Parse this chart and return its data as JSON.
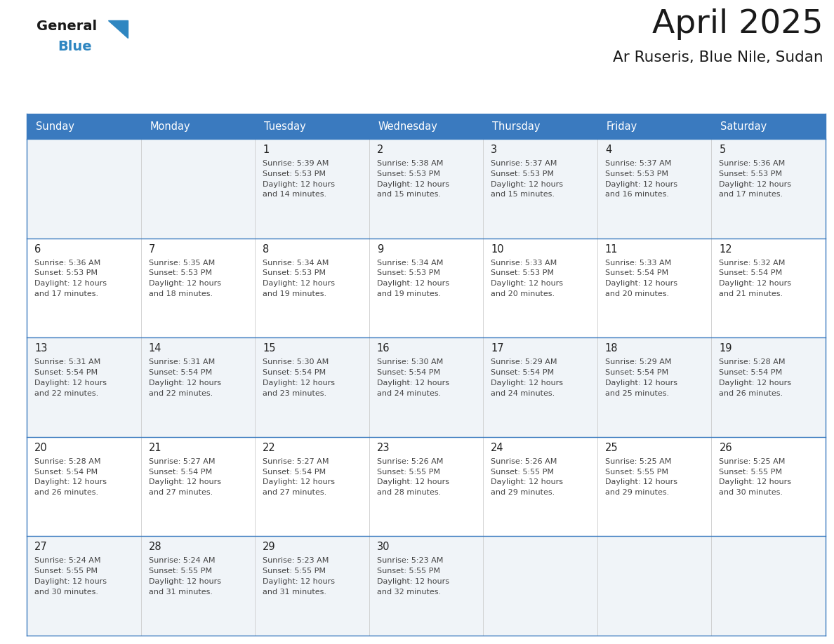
{
  "title": "April 2025",
  "subtitle": "Ar Ruseris, Blue Nile, Sudan",
  "header_bg": "#3a7abf",
  "header_text_color": "#ffffff",
  "cell_bg_odd": "#f0f4f8",
  "cell_bg_even": "#ffffff",
  "row_line_color": "#3a7abf",
  "text_color": "#444444",
  "days_of_week": [
    "Sunday",
    "Monday",
    "Tuesday",
    "Wednesday",
    "Thursday",
    "Friday",
    "Saturday"
  ],
  "calendar": [
    [
      {
        "day": "",
        "info": ""
      },
      {
        "day": "",
        "info": ""
      },
      {
        "day": "1",
        "info": "Sunrise: 5:39 AM\nSunset: 5:53 PM\nDaylight: 12 hours\nand 14 minutes."
      },
      {
        "day": "2",
        "info": "Sunrise: 5:38 AM\nSunset: 5:53 PM\nDaylight: 12 hours\nand 15 minutes."
      },
      {
        "day": "3",
        "info": "Sunrise: 5:37 AM\nSunset: 5:53 PM\nDaylight: 12 hours\nand 15 minutes."
      },
      {
        "day": "4",
        "info": "Sunrise: 5:37 AM\nSunset: 5:53 PM\nDaylight: 12 hours\nand 16 minutes."
      },
      {
        "day": "5",
        "info": "Sunrise: 5:36 AM\nSunset: 5:53 PM\nDaylight: 12 hours\nand 17 minutes."
      }
    ],
    [
      {
        "day": "6",
        "info": "Sunrise: 5:36 AM\nSunset: 5:53 PM\nDaylight: 12 hours\nand 17 minutes."
      },
      {
        "day": "7",
        "info": "Sunrise: 5:35 AM\nSunset: 5:53 PM\nDaylight: 12 hours\nand 18 minutes."
      },
      {
        "day": "8",
        "info": "Sunrise: 5:34 AM\nSunset: 5:53 PM\nDaylight: 12 hours\nand 19 minutes."
      },
      {
        "day": "9",
        "info": "Sunrise: 5:34 AM\nSunset: 5:53 PM\nDaylight: 12 hours\nand 19 minutes."
      },
      {
        "day": "10",
        "info": "Sunrise: 5:33 AM\nSunset: 5:53 PM\nDaylight: 12 hours\nand 20 minutes."
      },
      {
        "day": "11",
        "info": "Sunrise: 5:33 AM\nSunset: 5:54 PM\nDaylight: 12 hours\nand 20 minutes."
      },
      {
        "day": "12",
        "info": "Sunrise: 5:32 AM\nSunset: 5:54 PM\nDaylight: 12 hours\nand 21 minutes."
      }
    ],
    [
      {
        "day": "13",
        "info": "Sunrise: 5:31 AM\nSunset: 5:54 PM\nDaylight: 12 hours\nand 22 minutes."
      },
      {
        "day": "14",
        "info": "Sunrise: 5:31 AM\nSunset: 5:54 PM\nDaylight: 12 hours\nand 22 minutes."
      },
      {
        "day": "15",
        "info": "Sunrise: 5:30 AM\nSunset: 5:54 PM\nDaylight: 12 hours\nand 23 minutes."
      },
      {
        "day": "16",
        "info": "Sunrise: 5:30 AM\nSunset: 5:54 PM\nDaylight: 12 hours\nand 24 minutes."
      },
      {
        "day": "17",
        "info": "Sunrise: 5:29 AM\nSunset: 5:54 PM\nDaylight: 12 hours\nand 24 minutes."
      },
      {
        "day": "18",
        "info": "Sunrise: 5:29 AM\nSunset: 5:54 PM\nDaylight: 12 hours\nand 25 minutes."
      },
      {
        "day": "19",
        "info": "Sunrise: 5:28 AM\nSunset: 5:54 PM\nDaylight: 12 hours\nand 26 minutes."
      }
    ],
    [
      {
        "day": "20",
        "info": "Sunrise: 5:28 AM\nSunset: 5:54 PM\nDaylight: 12 hours\nand 26 minutes."
      },
      {
        "day": "21",
        "info": "Sunrise: 5:27 AM\nSunset: 5:54 PM\nDaylight: 12 hours\nand 27 minutes."
      },
      {
        "day": "22",
        "info": "Sunrise: 5:27 AM\nSunset: 5:54 PM\nDaylight: 12 hours\nand 27 minutes."
      },
      {
        "day": "23",
        "info": "Sunrise: 5:26 AM\nSunset: 5:55 PM\nDaylight: 12 hours\nand 28 minutes."
      },
      {
        "day": "24",
        "info": "Sunrise: 5:26 AM\nSunset: 5:55 PM\nDaylight: 12 hours\nand 29 minutes."
      },
      {
        "day": "25",
        "info": "Sunrise: 5:25 AM\nSunset: 5:55 PM\nDaylight: 12 hours\nand 29 minutes."
      },
      {
        "day": "26",
        "info": "Sunrise: 5:25 AM\nSunset: 5:55 PM\nDaylight: 12 hours\nand 30 minutes."
      }
    ],
    [
      {
        "day": "27",
        "info": "Sunrise: 5:24 AM\nSunset: 5:55 PM\nDaylight: 12 hours\nand 30 minutes."
      },
      {
        "day": "28",
        "info": "Sunrise: 5:24 AM\nSunset: 5:55 PM\nDaylight: 12 hours\nand 31 minutes."
      },
      {
        "day": "29",
        "info": "Sunrise: 5:23 AM\nSunset: 5:55 PM\nDaylight: 12 hours\nand 31 minutes."
      },
      {
        "day": "30",
        "info": "Sunrise: 5:23 AM\nSunset: 5:55 PM\nDaylight: 12 hours\nand 32 minutes."
      },
      {
        "day": "",
        "info": ""
      },
      {
        "day": "",
        "info": ""
      },
      {
        "day": "",
        "info": ""
      }
    ]
  ],
  "logo_general_color": "#1a1a1a",
  "logo_blue_color": "#2e86c1",
  "fig_width": 11.88,
  "fig_height": 9.18,
  "dpi": 100
}
